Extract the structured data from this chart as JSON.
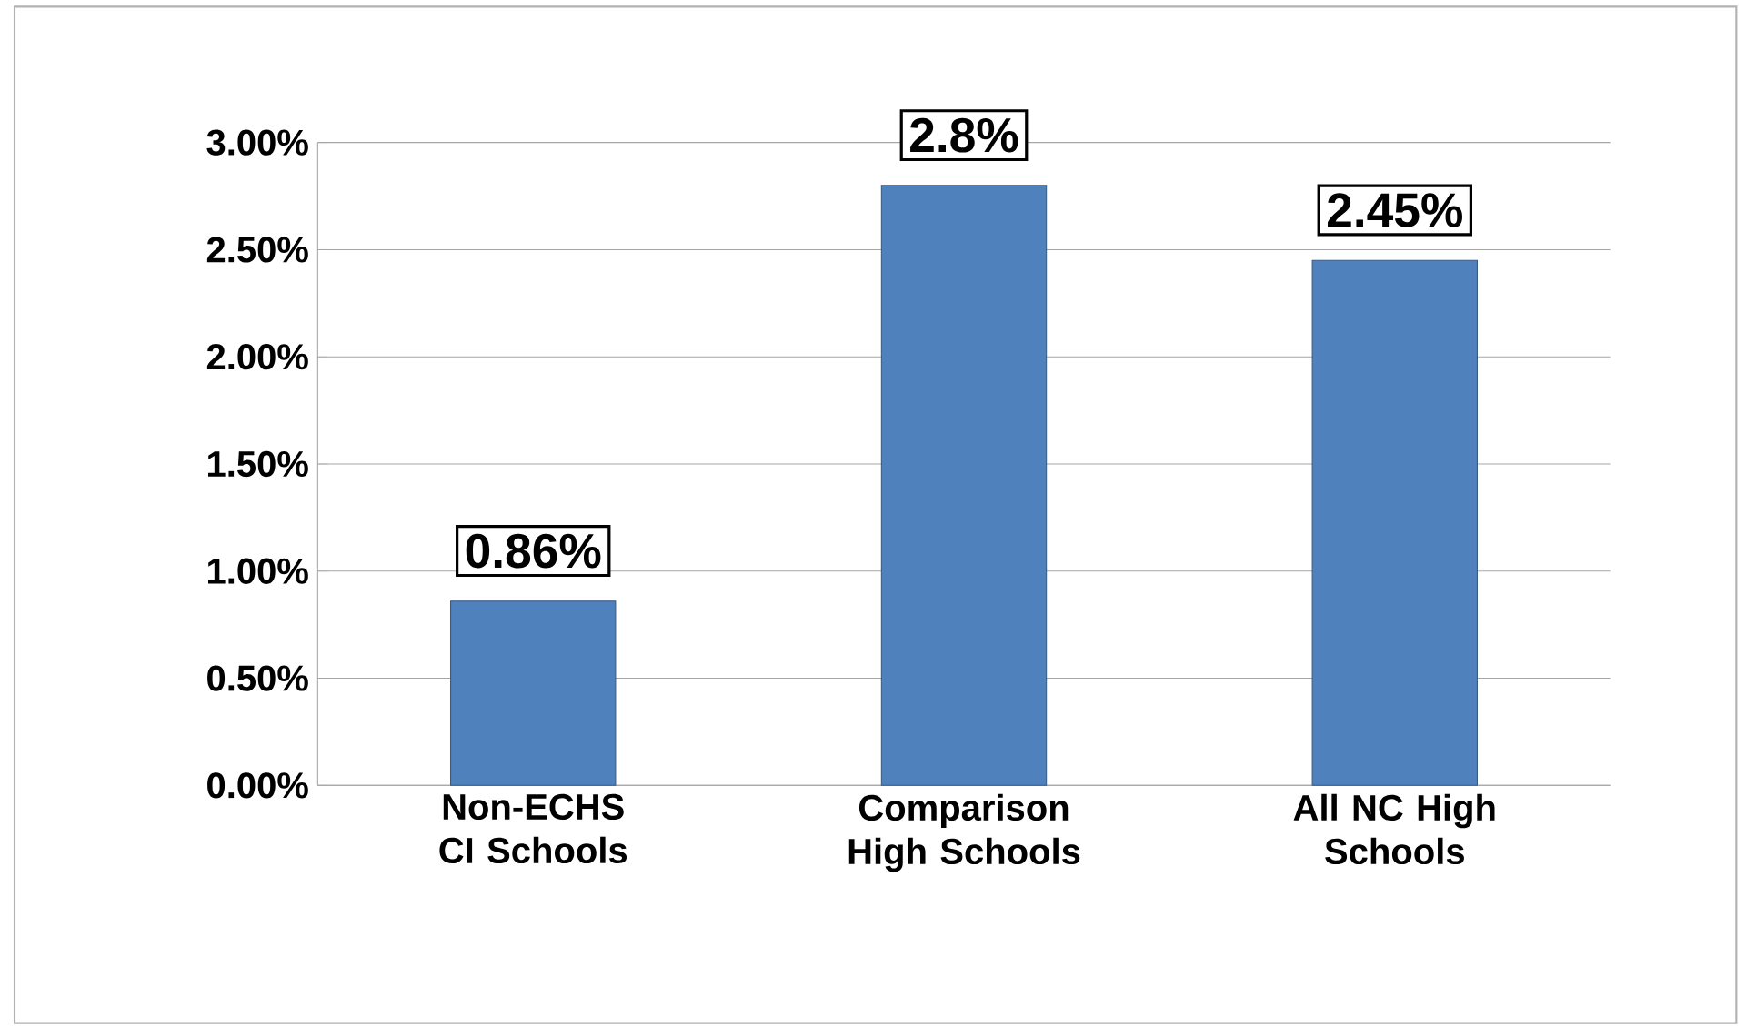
{
  "chart_data": {
    "type": "bar",
    "categories": [
      "Non-ECHS CI Schools",
      "Comparison High Schools",
      "All NC High Schools"
    ],
    "values": [
      0.86,
      2.8,
      2.45
    ],
    "value_labels": [
      "0.86%",
      "2.8%",
      "2.45%"
    ],
    "color": "#4f81bd",
    "ylim": [
      0,
      3
    ],
    "yticks": [
      {
        "value": 0,
        "label": "0.00%"
      },
      {
        "value": 0.5,
        "label": "0.50%"
      },
      {
        "value": 1,
        "label": "1.00%"
      },
      {
        "value": 1.5,
        "label": "1.50%"
      },
      {
        "value": 2,
        "label": "2.00%"
      },
      {
        "value": 2.5,
        "label": "2.50%"
      },
      {
        "value": 3,
        "label": "3.00%"
      }
    ],
    "grid": "y"
  }
}
